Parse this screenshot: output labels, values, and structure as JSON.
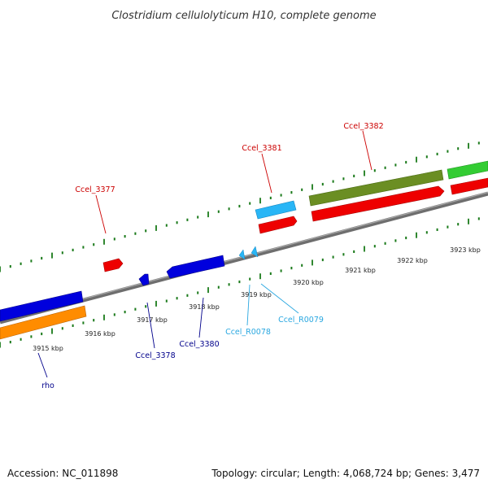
{
  "title": "Clostridium cellulolyticum H10, complete genome",
  "footer": {
    "accession": "Accession: NC_011898",
    "summary": "Topology: circular; Length: 4,068,724 bp; Genes: 3,477"
  },
  "colors": {
    "backbone": "#808080",
    "tick": "#1a7a1a",
    "forward_red": "#ee0000",
    "reverse_blue": "#0000dd",
    "orange": "#ff8c00",
    "olive": "#6b8e23",
    "green": "#33cc33",
    "cyan_rna": "#29b6f6",
    "label_red": "#cc0000",
    "label_blue": "#00008b",
    "label_cyan": "#29a7e0"
  },
  "kbp_labels": [
    "3915 kbp",
    "3916 kbp",
    "3917 kbp",
    "3918 kbp",
    "3919 kbp",
    "3920 kbp",
    "3921 kbp",
    "3922 kbp",
    "3923 kbp"
  ],
  "gene_labels": {
    "ccel_3377": "Ccel_3377",
    "ccel_3381": "Ccel_3381",
    "ccel_3382": "Ccel_3382",
    "ccel_3378": "Ccel_3378",
    "ccel_3380": "Ccel_3380",
    "ccel_r0078": "Ccel_R0078",
    "ccel_r0079": "Ccel_R0079",
    "rho": "rho"
  }
}
